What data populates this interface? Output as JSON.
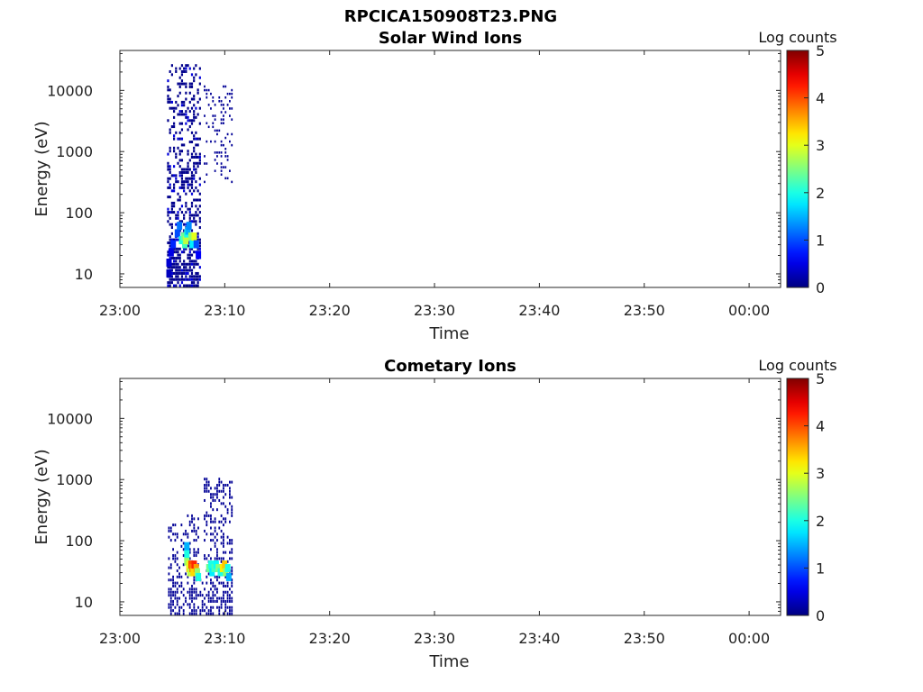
{
  "figure": {
    "title": "RPCICA150908T23.PNG"
  },
  "chart_data": [
    {
      "type": "heatmap",
      "title": "Solar Wind Ions",
      "xlabel": "Time",
      "ylabel": "Energy (eV)",
      "x_ticks": [
        "23:00",
        "23:10",
        "23:20",
        "23:30",
        "23:40",
        "23:50",
        "00:00"
      ],
      "x_range_minutes": [
        0,
        63
      ],
      "y_scale": "log",
      "y_ticks": [
        10,
        100,
        1000,
        10000
      ],
      "y_tick_labels": [
        "10",
        "100",
        "1000",
        "10000"
      ],
      "ylim": [
        6,
        45000
      ],
      "colorbar": {
        "label": "Log counts",
        "min": 0,
        "max": 5,
        "ticks": [
          "0",
          "1",
          "2",
          "3",
          "4",
          "5"
        ]
      },
      "cells": [
        {
          "t": 4.6,
          "e": 10,
          "v": 0.3
        },
        {
          "t": 4.6,
          "e": 15,
          "v": 0.4
        },
        {
          "t": 4.8,
          "e": 22,
          "v": 0.5
        },
        {
          "t": 5.0,
          "e": 30,
          "v": 0.8
        },
        {
          "t": 5.4,
          "e": 45,
          "v": 1.0
        },
        {
          "t": 5.6,
          "e": 60,
          "v": 1.2
        },
        {
          "t": 5.8,
          "e": 35,
          "v": 2.0
        },
        {
          "t": 6.0,
          "e": 40,
          "v": 2.4
        },
        {
          "t": 6.1,
          "e": 30,
          "v": 2.2
        },
        {
          "t": 6.2,
          "e": 35,
          "v": 2.8
        },
        {
          "t": 6.3,
          "e": 45,
          "v": 2.0
        },
        {
          "t": 6.4,
          "e": 50,
          "v": 1.5
        },
        {
          "t": 6.5,
          "e": 60,
          "v": 1.3
        },
        {
          "t": 6.7,
          "e": 40,
          "v": 2.6
        },
        {
          "t": 6.8,
          "e": 30,
          "v": 1.8
        },
        {
          "t": 7.0,
          "e": 40,
          "v": 3.0
        },
        {
          "t": 7.2,
          "e": 30,
          "v": 1.0
        },
        {
          "t": 7.4,
          "e": 20,
          "v": 0.6
        }
      ]
    },
    {
      "type": "heatmap",
      "title": "Cometary Ions",
      "xlabel": "Time",
      "ylabel": "Energy (eV)",
      "x_ticks": [
        "23:00",
        "23:10",
        "23:20",
        "23:30",
        "23:40",
        "23:50",
        "00:00"
      ],
      "x_range_minutes": [
        0,
        63
      ],
      "y_scale": "log",
      "y_ticks": [
        10,
        100,
        1000,
        10000
      ],
      "y_tick_labels": [
        "10",
        "100",
        "1000",
        "10000"
      ],
      "ylim": [
        6,
        45000
      ],
      "colorbar": {
        "label": "Log counts",
        "min": 0,
        "max": 5,
        "ticks": [
          "0",
          "1",
          "2",
          "3",
          "4",
          "5"
        ]
      },
      "cells": [
        {
          "t": 6.3,
          "e": 45,
          "v": 2.6
        },
        {
          "t": 6.3,
          "e": 60,
          "v": 2.0
        },
        {
          "t": 6.3,
          "e": 80,
          "v": 1.5
        },
        {
          "t": 6.5,
          "e": 35,
          "v": 3.4
        },
        {
          "t": 6.5,
          "e": 40,
          "v": 3.0
        },
        {
          "t": 6.6,
          "e": 30,
          "v": 2.8
        },
        {
          "t": 6.7,
          "e": 40,
          "v": 4.0
        },
        {
          "t": 6.8,
          "e": 35,
          "v": 3.8
        },
        {
          "t": 6.9,
          "e": 30,
          "v": 3.3
        },
        {
          "t": 7.0,
          "e": 40,
          "v": 4.2
        },
        {
          "t": 7.2,
          "e": 35,
          "v": 3.6
        },
        {
          "t": 7.3,
          "e": 30,
          "v": 2.6
        },
        {
          "t": 7.4,
          "e": 25,
          "v": 2.0
        },
        {
          "t": 8.4,
          "e": 35,
          "v": 2.4
        },
        {
          "t": 8.6,
          "e": 40,
          "v": 2.0
        },
        {
          "t": 8.7,
          "e": 30,
          "v": 1.8
        },
        {
          "t": 8.9,
          "e": 35,
          "v": 2.2
        },
        {
          "t": 9.1,
          "e": 40,
          "v": 1.9
        },
        {
          "t": 9.3,
          "e": 35,
          "v": 2.5
        },
        {
          "t": 9.5,
          "e": 30,
          "v": 2.0
        },
        {
          "t": 9.7,
          "e": 35,
          "v": 3.2
        },
        {
          "t": 9.9,
          "e": 40,
          "v": 3.4
        },
        {
          "t": 10.0,
          "e": 30,
          "v": 2.6
        },
        {
          "t": 10.2,
          "e": 35,
          "v": 2.0
        },
        {
          "t": 10.3,
          "e": 25,
          "v": 1.5
        }
      ]
    }
  ]
}
